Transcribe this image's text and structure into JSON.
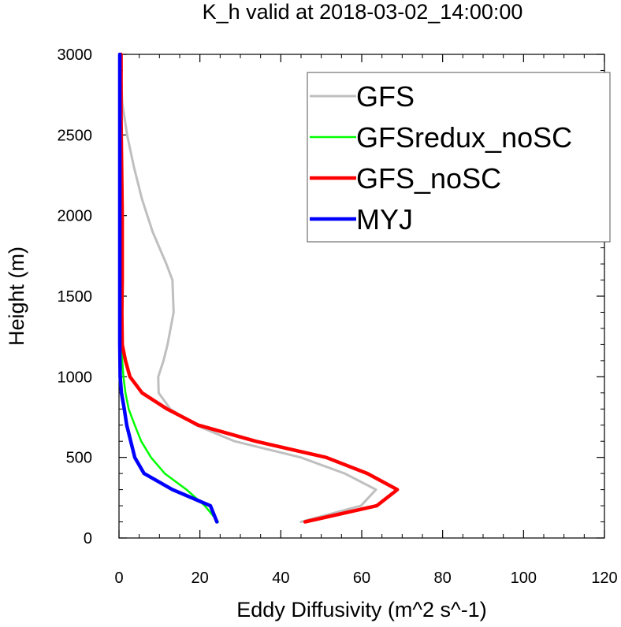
{
  "chart_data": {
    "type": "line",
    "title": "K_h valid at 2018-03-02_14:00:00",
    "xlabel": "Eddy Diffusivity (m^2 s^-1)",
    "ylabel": "Height (m)",
    "xlim": [
      0,
      120
    ],
    "ylim": [
      0,
      3000
    ],
    "xticks": [
      0,
      20,
      40,
      60,
      80,
      100,
      120
    ],
    "yticks": [
      0,
      500,
      1000,
      1500,
      2000,
      2500,
      3000
    ],
    "xtick_labels": [
      "0",
      "20",
      "40",
      "60",
      "80",
      "100",
      "120"
    ],
    "ytick_labels": [
      "0",
      "500",
      "1000",
      "1500",
      "2000",
      "2500",
      "3000"
    ],
    "grid": false,
    "legend_position": "top-right",
    "series": [
      {
        "name": "GFS",
        "color": "#bfbfbf",
        "points": [
          [
            45,
            100
          ],
          [
            59.8,
            200
          ],
          [
            63.5,
            300
          ],
          [
            55.8,
            400
          ],
          [
            44.9,
            500
          ],
          [
            28.6,
            600
          ],
          [
            19,
            700
          ],
          [
            12.7,
            800
          ],
          [
            9.8,
            900
          ],
          [
            9.7,
            1000
          ],
          [
            11,
            1100
          ],
          [
            12,
            1200
          ],
          [
            13.5,
            1400
          ],
          [
            13.2,
            1600
          ],
          [
            11.7,
            1700
          ],
          [
            8.3,
            1900
          ],
          [
            5.7,
            2100
          ],
          [
            3.7,
            2300
          ],
          [
            2,
            2500
          ],
          [
            0.8,
            2700
          ],
          [
            0.3,
            3000
          ]
        ]
      },
      {
        "name": "GFSredux_noSC",
        "color": "#00ff00",
        "points": [
          [
            24.5,
            100
          ],
          [
            21.2,
            200
          ],
          [
            16.7,
            300
          ],
          [
            11.3,
            400
          ],
          [
            7.9,
            500
          ],
          [
            5.5,
            600
          ],
          [
            3.9,
            700
          ],
          [
            2.4,
            800
          ],
          [
            1.6,
            900
          ],
          [
            1.1,
            1000
          ],
          [
            0.8,
            1100
          ],
          [
            0.7,
            1200
          ],
          [
            0.7,
            1400
          ],
          [
            0.8,
            1600
          ],
          [
            0.7,
            2000
          ],
          [
            0.6,
            2400
          ],
          [
            0.4,
            2600
          ],
          [
            0.2,
            3000
          ]
        ]
      },
      {
        "name": "GFS_noSC",
        "color": "#ff0000",
        "points": [
          [
            46,
            100
          ],
          [
            63.7,
            200
          ],
          [
            68.8,
            300
          ],
          [
            61.4,
            400
          ],
          [
            51.2,
            500
          ],
          [
            33.8,
            600
          ],
          [
            19.6,
            700
          ],
          [
            11.9,
            800
          ],
          [
            5.7,
            900
          ],
          [
            2.7,
            1000
          ],
          [
            1.6,
            1100
          ],
          [
            0.8,
            1200
          ],
          [
            0.7,
            1400
          ],
          [
            0.8,
            1600
          ],
          [
            0.8,
            2000
          ],
          [
            0.6,
            2400
          ],
          [
            0.5,
            2600
          ],
          [
            0.5,
            3000
          ]
        ]
      },
      {
        "name": "MYJ",
        "color": "#0000ff",
        "points": [
          [
            24.2,
            100
          ],
          [
            22.6,
            200
          ],
          [
            13.2,
            300
          ],
          [
            6.2,
            400
          ],
          [
            3.9,
            500
          ],
          [
            2.9,
            600
          ],
          [
            1.9,
            700
          ],
          [
            1.3,
            800
          ],
          [
            0.6,
            900
          ],
          [
            0.3,
            1000
          ],
          [
            0.2,
            1200
          ],
          [
            0.2,
            1600
          ],
          [
            0.2,
            2000
          ],
          [
            0.2,
            2500
          ],
          [
            0.2,
            3000
          ]
        ]
      }
    ]
  }
}
